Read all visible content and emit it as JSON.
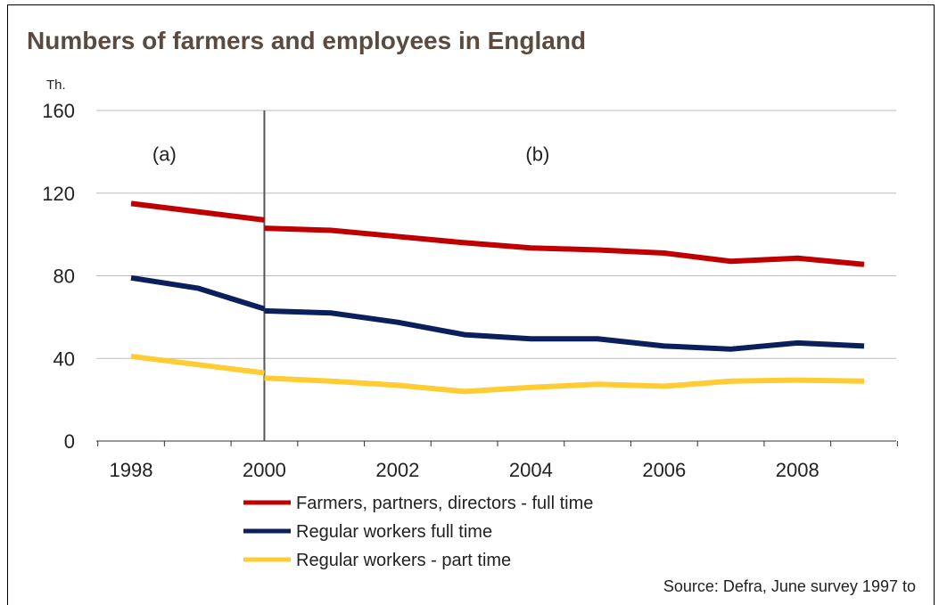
{
  "title": "Numbers of farmers and employees in England",
  "source": "Source: Defra, June survey 1997 to",
  "chart_data": {
    "type": "line",
    "title": "Numbers of farmers and employees in England",
    "y_unit_label": "Th.",
    "ylim": [
      0,
      160
    ],
    "yticks": [
      0,
      40,
      80,
      120,
      160
    ],
    "xlim": [
      1997.5,
      2009.5
    ],
    "xticks": [
      1998,
      2000,
      2002,
      2004,
      2006,
      2008
    ],
    "grid": true,
    "legend_position": "bottom",
    "divider_x": 2000,
    "period_labels": [
      {
        "text": "(a)",
        "x": 1998.5,
        "y": 139
      },
      {
        "text": "(b)",
        "x": 2004.1,
        "y": 139
      }
    ],
    "series": [
      {
        "name": "Farmers, partners, directors - full time",
        "color": "#c00000",
        "segments": [
          {
            "x": [
              1998,
              1999,
              2000
            ],
            "y": [
              115,
              111,
              107
            ]
          },
          {
            "x": [
              2000,
              2001,
              2002,
              2003,
              2004,
              2005,
              2006,
              2007,
              2008,
              2009
            ],
            "y": [
              103,
              102,
              99,
              96,
              93.5,
              92.5,
              91,
              87,
              88.5,
              85.5
            ]
          }
        ]
      },
      {
        "name": "Regular workers full time",
        "color": "#0a1f5c",
        "segments": [
          {
            "x": [
              1998,
              1999,
              2000
            ],
            "y": [
              79,
              74,
              64
            ]
          },
          {
            "x": [
              2000,
              2001,
              2002,
              2003,
              2004,
              2005,
              2006,
              2007,
              2008,
              2009
            ],
            "y": [
              63,
              62,
              57.5,
              51.5,
              49.5,
              49.5,
              46,
              44.5,
              47.5,
              46
            ]
          }
        ]
      },
      {
        "name": "Regular workers - part time",
        "color": "#ffcc33",
        "segments": [
          {
            "x": [
              1998,
              1999,
              2000
            ],
            "y": [
              41,
              37,
              33
            ]
          },
          {
            "x": [
              2000,
              2001,
              2002,
              2003,
              2004,
              2005,
              2006,
              2007,
              2008,
              2009
            ],
            "y": [
              30.5,
              29,
              27,
              24,
              26,
              27.5,
              26.5,
              29,
              29.5,
              29
            ]
          }
        ]
      }
    ]
  }
}
